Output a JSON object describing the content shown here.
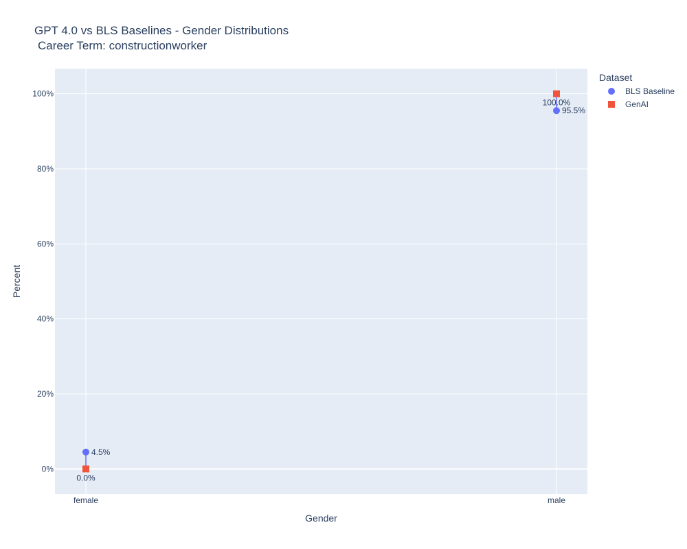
{
  "chart_data": {
    "type": "scatter",
    "title": "GPT 4.0 vs BLS Baselines - Gender Distributions",
    "subtitle": "Career Term: constructionworker",
    "xlabel": "Gender",
    "ylabel": "Percent",
    "categories": [
      "female",
      "male"
    ],
    "ylim": [
      -6.7,
      106.7
    ],
    "yticks": [
      0,
      20,
      40,
      60,
      80,
      100
    ],
    "ytick_labels": [
      "0%",
      "20%",
      "40%",
      "60%",
      "80%",
      "100%"
    ],
    "grid": true,
    "background": "#e5ecf6",
    "legend": {
      "title": "Dataset",
      "placement": "top-right-outside"
    },
    "series": [
      {
        "name": "BLS Baseline",
        "marker": "circle",
        "color": "#636efa",
        "values": [
          4.5,
          95.5
        ],
        "labels": [
          "4.5%",
          "95.5%"
        ],
        "label_position": "right"
      },
      {
        "name": "GenAI",
        "marker": "square",
        "color": "#ef553b",
        "values": [
          0.0,
          100.0
        ],
        "labels": [
          "0.0%",
          "100.0%"
        ],
        "label_position": "below"
      }
    ],
    "connector_color": "#636efa"
  }
}
